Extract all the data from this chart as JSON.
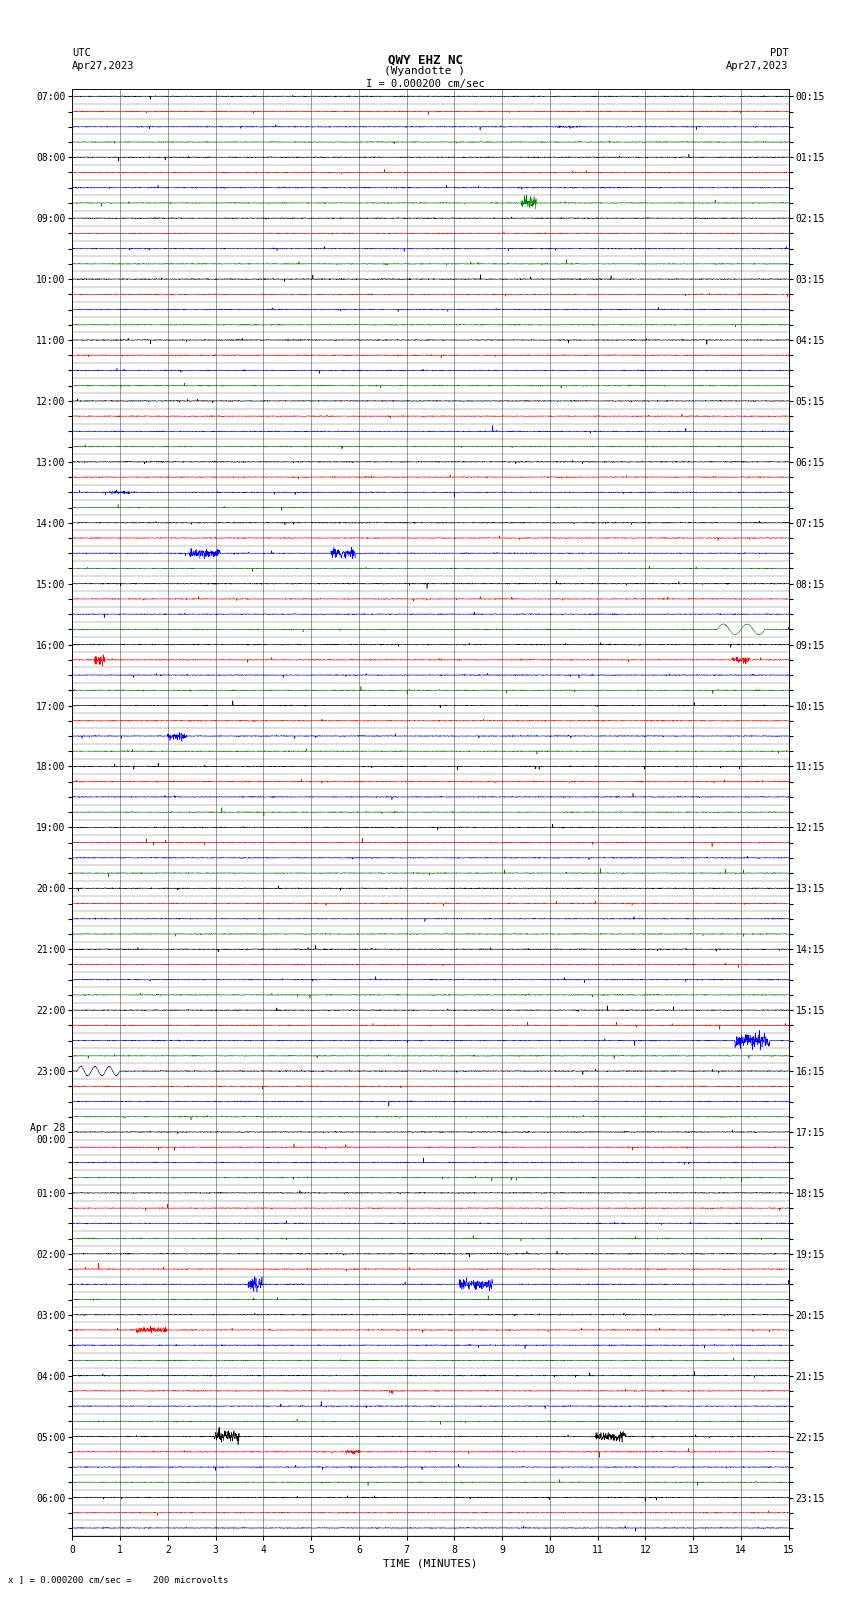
{
  "title_line1": "QWY EHZ NC",
  "title_line2": "(Wyandotte )",
  "scale_text": "I = 0.000200 cm/sec",
  "left_header": "UTC",
  "left_date": "Apr27,2023",
  "right_header": "PDT",
  "right_date": "Apr27,2023",
  "bottom_label": "TIME (MINUTES)",
  "bottom_note": "x ] = 0.000200 cm/sec =    200 microvolts",
  "fig_width": 8.5,
  "fig_height": 16.13,
  "bg_color": "#ffffff",
  "trace_colors": [
    "black",
    "red",
    "blue",
    "green"
  ],
  "utc_labels": [
    "07:00",
    "",
    "",
    "",
    "08:00",
    "",
    "",
    "",
    "09:00",
    "",
    "",
    "",
    "10:00",
    "",
    "",
    "",
    "11:00",
    "",
    "",
    "",
    "12:00",
    "",
    "",
    "",
    "13:00",
    "",
    "",
    "",
    "14:00",
    "",
    "",
    "",
    "15:00",
    "",
    "",
    "",
    "16:00",
    "",
    "",
    "",
    "17:00",
    "",
    "",
    "",
    "18:00",
    "",
    "",
    "",
    "19:00",
    "",
    "",
    "",
    "20:00",
    "",
    "",
    "",
    "21:00",
    "",
    "",
    "",
    "22:00",
    "",
    "",
    "",
    "23:00",
    "",
    "",
    "",
    "Apr 28\n00:00",
    "",
    "",
    "",
    "01:00",
    "",
    "",
    "",
    "02:00",
    "",
    "",
    "",
    "03:00",
    "",
    "",
    "",
    "04:00",
    "",
    "",
    "",
    "05:00",
    "",
    "",
    "",
    "06:00",
    "",
    ""
  ],
  "pdt_labels": [
    "00:15",
    "",
    "",
    "",
    "01:15",
    "",
    "",
    "",
    "02:15",
    "",
    "",
    "",
    "03:15",
    "",
    "",
    "",
    "04:15",
    "",
    "",
    "",
    "05:15",
    "",
    "",
    "",
    "06:15",
    "",
    "",
    "",
    "07:15",
    "",
    "",
    "",
    "08:15",
    "",
    "",
    "",
    "09:15",
    "",
    "",
    "",
    "10:15",
    "",
    "",
    "",
    "11:15",
    "",
    "",
    "",
    "12:15",
    "",
    "",
    "",
    "13:15",
    "",
    "",
    "",
    "14:15",
    "",
    "",
    "",
    "15:15",
    "",
    "",
    "",
    "16:15",
    "",
    "",
    "",
    "17:15",
    "",
    "",
    "",
    "18:15",
    "",
    "",
    "",
    "19:15",
    "",
    "",
    "",
    "20:15",
    "",
    "",
    "",
    "21:15",
    "",
    "",
    "",
    "22:15",
    "",
    "",
    "",
    "23:15",
    "",
    ""
  ],
  "n_rows": 95,
  "n_cols": 15,
  "noise_scale": 0.012,
  "spike_prob": 0.003,
  "spike_scale": 0.12,
  "seed": 42
}
